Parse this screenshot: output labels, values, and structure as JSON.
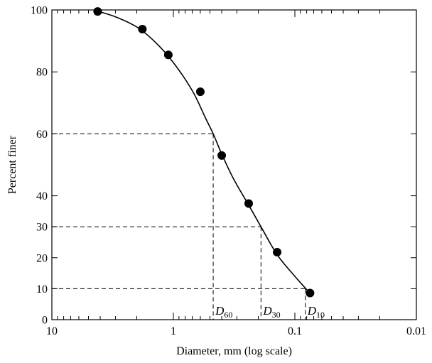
{
  "chart_data": {
    "type": "scatter",
    "title": "",
    "xlabel": "Diameter, mm (log scale)",
    "ylabel": "Percent finer",
    "x_scale": "log",
    "x_reversed": true,
    "xlim": [
      10,
      0.01
    ],
    "ylim": [
      0,
      100
    ],
    "x_ticks": [
      10,
      1,
      0.1,
      0.01
    ],
    "x_tick_labels": [
      "10",
      "1",
      "0.1",
      "0.01"
    ],
    "y_ticks": [
      0,
      10,
      20,
      30,
      40,
      60,
      80,
      100
    ],
    "y_tick_labels": [
      "0",
      "10",
      "20",
      "30",
      "40",
      "60",
      "80",
      "100"
    ],
    "grid": false,
    "series": [
      {
        "points": [
          {
            "x": 4.2,
            "y": 99.5
          },
          {
            "x": 1.8,
            "y": 93.8
          },
          {
            "x": 1.1,
            "y": 85.5
          },
          {
            "x": 0.6,
            "y": 73.6
          },
          {
            "x": 0.4,
            "y": 53.0
          },
          {
            "x": 0.24,
            "y": 37.5
          },
          {
            "x": 0.14,
            "y": 21.8
          },
          {
            "x": 0.075,
            "y": 8.6
          }
        ],
        "curve": [
          {
            "x": 4.2,
            "y": 99.6
          },
          {
            "x": 3.0,
            "y": 97.8
          },
          {
            "x": 2.0,
            "y": 94.5
          },
          {
            "x": 1.4,
            "y": 89.5
          },
          {
            "x": 1.0,
            "y": 83.0
          },
          {
            "x": 0.7,
            "y": 74.0
          },
          {
            "x": 0.55,
            "y": 65.5
          },
          {
            "x": 0.47,
            "y": 60.0
          },
          {
            "x": 0.4,
            "y": 53.5
          },
          {
            "x": 0.32,
            "y": 45.5
          },
          {
            "x": 0.24,
            "y": 37.0
          },
          {
            "x": 0.19,
            "y": 30.0
          },
          {
            "x": 0.14,
            "y": 21.0
          },
          {
            "x": 0.1,
            "y": 14.0
          },
          {
            "x": 0.075,
            "y": 8.5
          }
        ],
        "color": "#000000"
      }
    ],
    "reference_lines": [
      {
        "label": "D",
        "subscript": "60",
        "y": 60,
        "x": 0.47
      },
      {
        "label": "D",
        "subscript": "30",
        "y": 30,
        "x": 0.19
      },
      {
        "label": "D",
        "subscript": "10",
        "y": 10,
        "x": 0.082
      }
    ]
  }
}
